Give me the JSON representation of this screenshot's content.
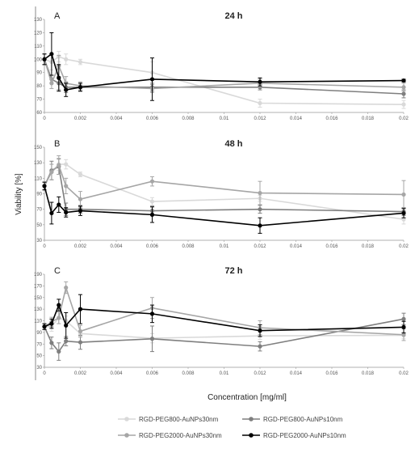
{
  "figure": {
    "ylabel": "Viability [%]",
    "xlabel": "Concentration [mg/ml]"
  },
  "legend": [
    {
      "name": "RGD-PEG800-AuNPs30nm",
      "color": "#d9d9d9"
    },
    {
      "name": "RGD-PEG2000-AuNPs30nm",
      "color": "#a6a6a6"
    },
    {
      "name": "RGD-PEG800-AuNPs10nm",
      "color": "#7f7f7f"
    },
    {
      "name": "RGD-PEG2000-AuNPs10nm",
      "color": "#000000"
    }
  ],
  "chart_data": [
    {
      "type": "line",
      "letter": "A",
      "title": "24 h",
      "x": [
        0,
        0.0004,
        0.0008,
        0.0012,
        0.002,
        0.006,
        0.012,
        0.02
      ],
      "xticks": [
        0,
        0.002,
        0.004,
        0.006,
        0.008,
        0.01,
        0.012,
        0.014,
        0.016,
        0.018,
        0.02
      ],
      "xtick_labels": [
        "0",
        "0.002",
        "0.004",
        "0.006",
        "0.008",
        "0.01",
        "0.012",
        "0.014",
        "0.016",
        "0.018",
        "0.02"
      ],
      "ylim": [
        60,
        130
      ],
      "yticks": [
        60,
        70,
        80,
        90,
        100,
        110,
        120,
        130
      ],
      "series": [
        {
          "name": "RGD-PEG800-AuNPs30nm",
          "color": "#d9d9d9",
          "values": [
            100,
            98,
            102,
            100,
            98,
            90,
            67,
            66
          ],
          "errors": [
            4,
            6,
            4,
            4,
            2,
            8,
            3,
            3
          ]
        },
        {
          "name": "RGD-PEG2000-AuNPs30nm",
          "color": "#a6a6a6",
          "values": [
            100,
            82,
            95,
            82,
            80,
            78,
            82,
            79
          ],
          "errors": [
            4,
            4,
            8,
            5,
            3,
            3,
            3,
            3
          ]
        },
        {
          "name": "RGD-PEG800-AuNPs10nm",
          "color": "#7f7f7f",
          "values": [
            100,
            85,
            82,
            79,
            79,
            79,
            79,
            74
          ],
          "errors": [
            4,
            3,
            5,
            4,
            3,
            3,
            2,
            3
          ]
        },
        {
          "name": "RGD-PEG2000-AuNPs10nm",
          "color": "#000000",
          "values": [
            100,
            104,
            86,
            77,
            79,
            85,
            83,
            84
          ],
          "errors": [
            4,
            16,
            10,
            5,
            3,
            16,
            3,
            1
          ]
        }
      ]
    },
    {
      "type": "line",
      "letter": "B",
      "title": "48 h",
      "x": [
        0,
        0.0004,
        0.0008,
        0.0012,
        0.002,
        0.006,
        0.012,
        0.02
      ],
      "xticks": [
        0,
        0.002,
        0.004,
        0.006,
        0.008,
        0.01,
        0.012,
        0.014,
        0.016,
        0.018,
        0.02
      ],
      "xtick_labels": [
        "0",
        "0.002",
        "0.004",
        "0.006",
        "0.008",
        "0.01",
        "0.012",
        "0.014",
        "0.016",
        "0.018",
        "0.02"
      ],
      "ylim": [
        30,
        150
      ],
      "yticks": [
        30,
        50,
        70,
        90,
        110,
        130,
        150
      ],
      "series": [
        {
          "name": "RGD-PEG800-AuNPs30nm",
          "color": "#d9d9d9",
          "values": [
            100,
            118,
            128,
            128,
            115,
            80,
            84,
            57
          ],
          "errors": [
            5,
            10,
            8,
            6,
            3,
            5,
            4,
            6
          ]
        },
        {
          "name": "RGD-PEG2000-AuNPs30nm",
          "color": "#a6a6a6",
          "values": [
            100,
            118,
            127,
            100,
            83,
            106,
            91,
            89
          ],
          "errors": [
            5,
            10,
            12,
            10,
            10,
            6,
            15,
            18
          ]
        },
        {
          "name": "RGD-PEG800-AuNPs10nm",
          "color": "#7f7f7f",
          "values": [
            100,
            120,
            125,
            70,
            70,
            68,
            70,
            67
          ],
          "errors": [
            5,
            12,
            10,
            8,
            5,
            6,
            5,
            5
          ]
        },
        {
          "name": "RGD-PEG2000-AuNPs10nm",
          "color": "#000000",
          "values": [
            100,
            65,
            76,
            66,
            68,
            63,
            49,
            65
          ],
          "errors": [
            5,
            14,
            10,
            6,
            6,
            10,
            10,
            6
          ]
        }
      ]
    },
    {
      "type": "line",
      "letter": "C",
      "title": "72 h",
      "x": [
        0,
        0.0004,
        0.0008,
        0.0012,
        0.002,
        0.006,
        0.012,
        0.02
      ],
      "xticks": [
        0,
        0.002,
        0.004,
        0.006,
        0.008,
        0.01,
        0.012,
        0.014,
        0.016,
        0.018,
        0.02
      ],
      "xtick_labels": [
        "0",
        "0.002",
        "0.004",
        "0.006",
        "0.008",
        "0.01",
        "0.012",
        "0.014",
        "0.016",
        "0.018",
        "0.02"
      ],
      "ylim": [
        30,
        190
      ],
      "yticks": [
        30,
        50,
        70,
        90,
        110,
        130,
        150,
        170,
        190
      ],
      "series": [
        {
          "name": "RGD-PEG800-AuNPs30nm",
          "color": "#d9d9d9",
          "values": [
            100,
            100,
            115,
            110,
            88,
            80,
            84,
            85
          ],
          "errors": [
            5,
            8,
            10,
            8,
            5,
            8,
            6,
            6
          ]
        },
        {
          "name": "RGD-PEG2000-AuNPs30nm",
          "color": "#a6a6a6",
          "values": [
            100,
            108,
            115,
            167,
            92,
            132,
            98,
            86
          ],
          "errors": [
            5,
            8,
            10,
            10,
            10,
            18,
            12,
            10
          ]
        },
        {
          "name": "RGD-PEG800-AuNPs10nm",
          "color": "#7f7f7f",
          "values": [
            100,
            72,
            57,
            75,
            73,
            79,
            66,
            113
          ],
          "errors": [
            5,
            10,
            15,
            8,
            12,
            22,
            8,
            10
          ]
        },
        {
          "name": "RGD-PEG2000-AuNPs10nm",
          "color": "#000000",
          "values": [
            100,
            105,
            137,
            102,
            130,
            122,
            93,
            99
          ],
          "errors": [
            5,
            8,
            10,
            22,
            25,
            15,
            10,
            10
          ]
        }
      ]
    }
  ]
}
